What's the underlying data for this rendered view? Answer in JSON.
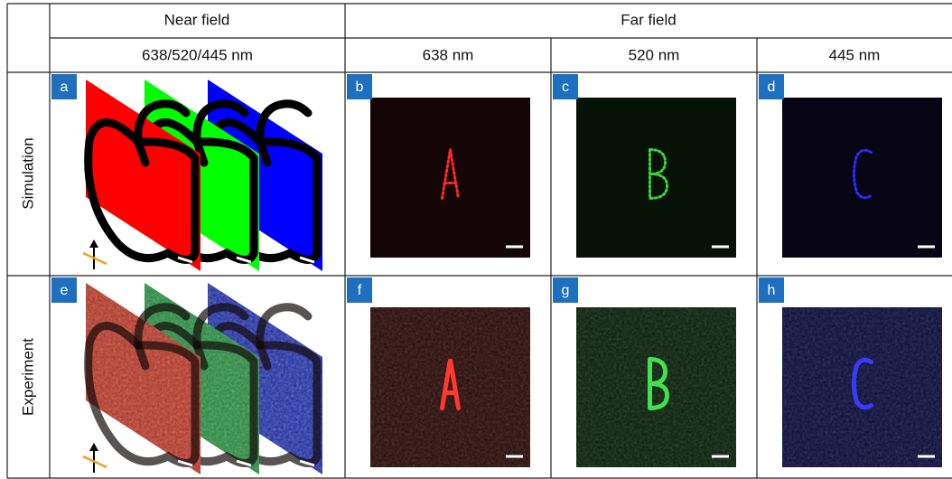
{
  "header": {
    "near": "Near field",
    "far": "Far field"
  },
  "subheader": [
    "638/520/445 nm",
    "638 nm",
    "520 nm",
    "445 nm"
  ],
  "rows": [
    {
      "label": "Simulation",
      "panels": [
        "a",
        "b",
        "c",
        "d"
      ]
    },
    {
      "label": "Experiment",
      "panels": [
        "e",
        "f",
        "g",
        "h"
      ]
    }
  ]
}
